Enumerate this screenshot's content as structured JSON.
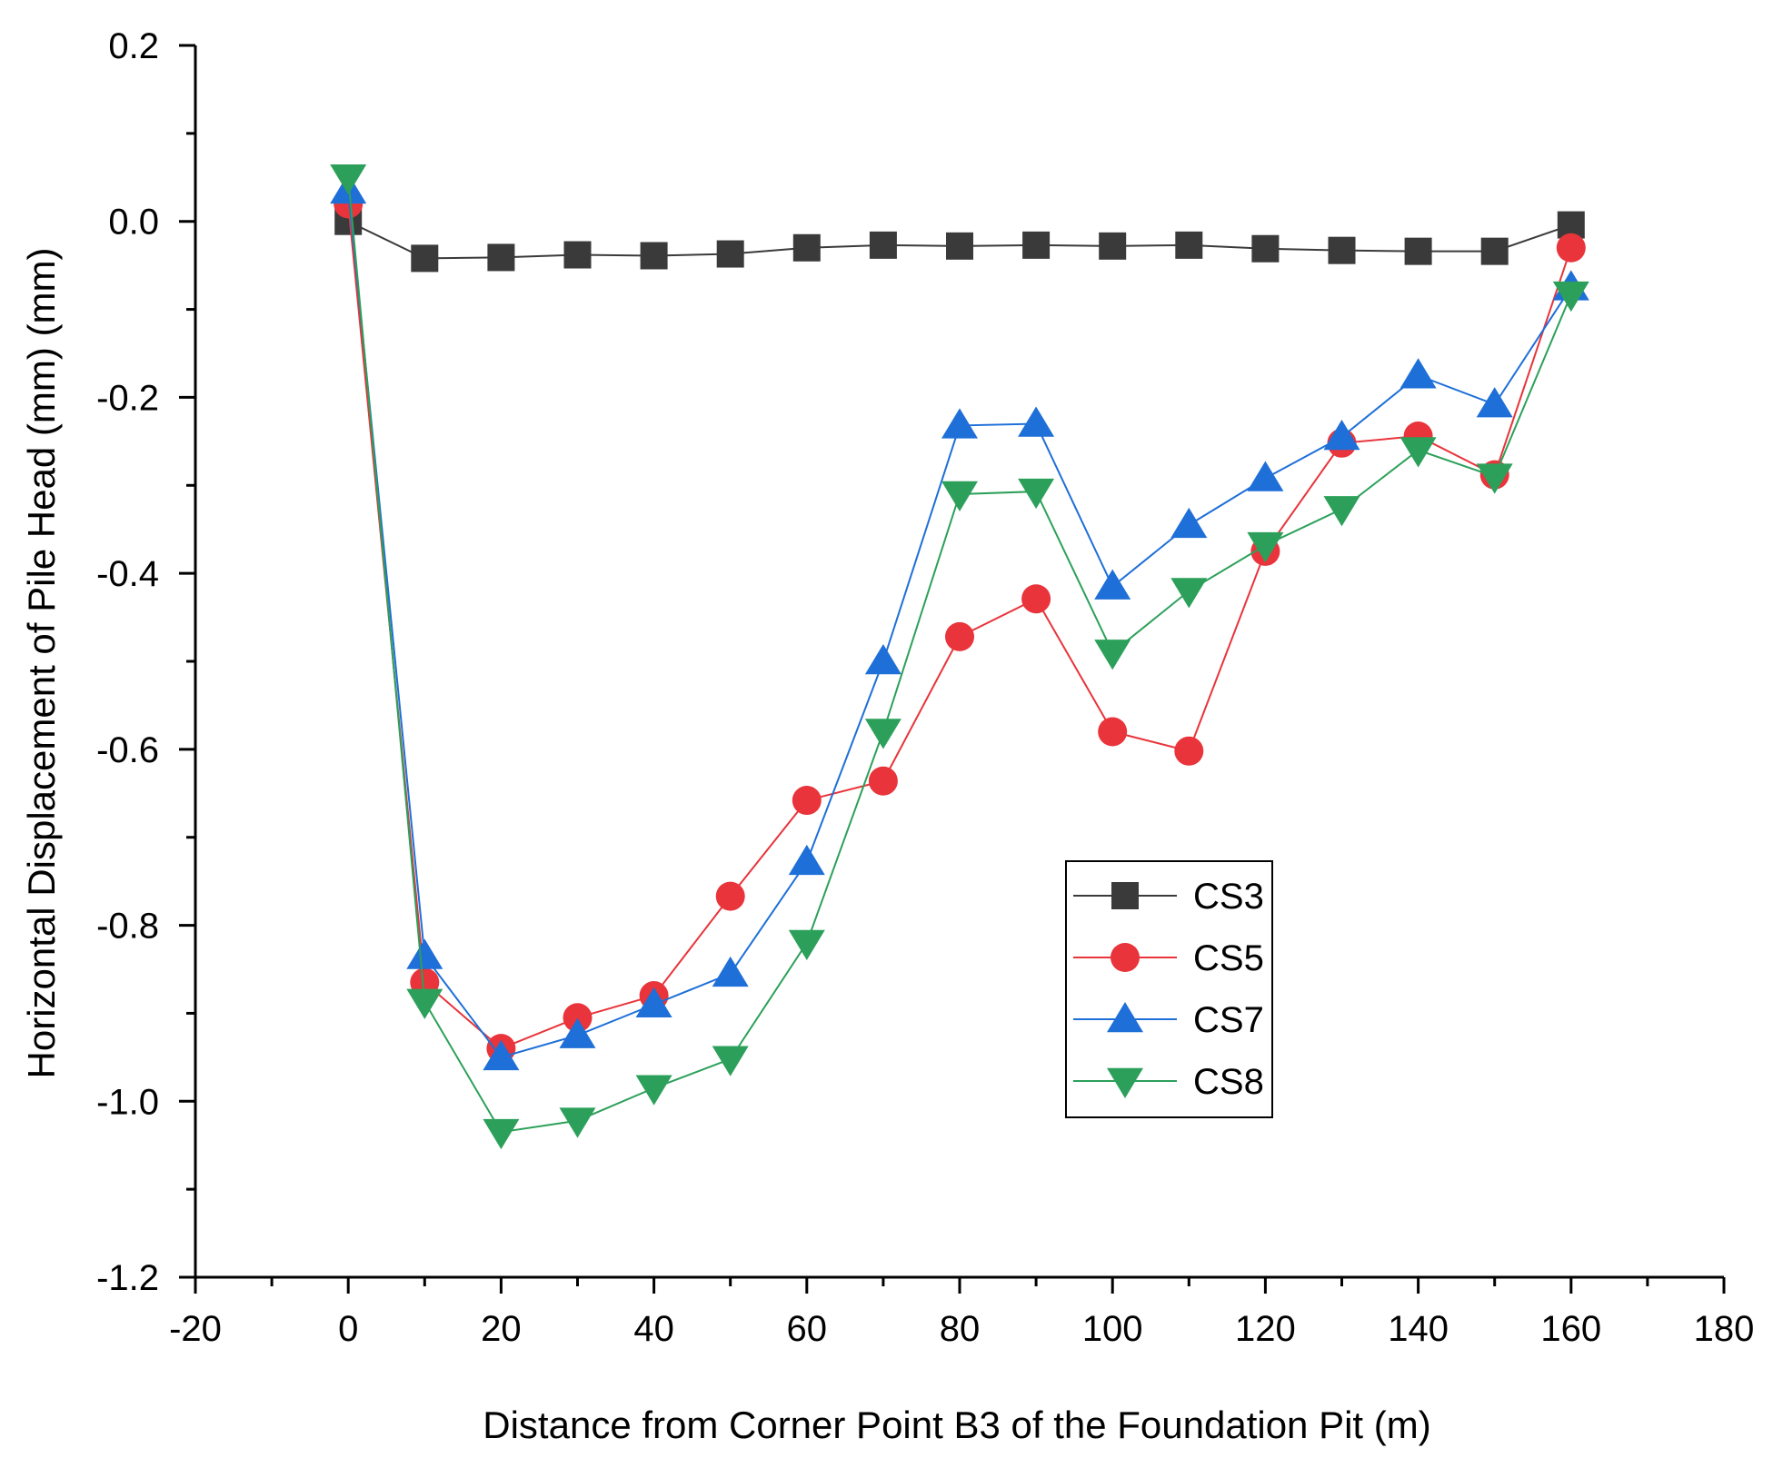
{
  "chart_data": {
    "type": "line",
    "title": "",
    "xlabel": "Distance from Corner Point B3 of the Foundation Pit (m)",
    "ylabel": "Horizontal Displacement of Pile Head (mm) (mm)",
    "xlim": [
      -20,
      180
    ],
    "ylim": [
      -1.2,
      0.2
    ],
    "grid": false,
    "legend_position": "center-right",
    "x_ticks": [
      -20,
      0,
      20,
      40,
      60,
      80,
      100,
      120,
      140,
      160,
      180
    ],
    "x_tick_labels": [
      "-20",
      "0",
      "20",
      "40",
      "60",
      "80",
      "100",
      "120",
      "140",
      "160",
      "180"
    ],
    "y_ticks": [
      0.2,
      0.0,
      -0.2,
      -0.4,
      -0.6,
      -0.8,
      -1.0,
      -1.2
    ],
    "y_tick_labels": [
      "0.2",
      "0.0",
      "-0.2",
      "-0.4",
      "-0.6",
      "-0.8",
      "-1.0",
      "-1.2"
    ],
    "x": [
      0,
      10,
      20,
      30,
      40,
      50,
      60,
      70,
      80,
      90,
      100,
      110,
      120,
      130,
      140,
      150,
      160
    ],
    "series": [
      {
        "name": "CS3",
        "color": "#3a3a3a",
        "marker": "square",
        "values": [
          0.0,
          -0.042,
          -0.041,
          -0.038,
          -0.039,
          -0.037,
          -0.03,
          -0.027,
          -0.028,
          -0.027,
          -0.028,
          -0.027,
          -0.031,
          -0.033,
          -0.034,
          -0.034,
          -0.004
        ]
      },
      {
        "name": "CS5",
        "color": "#e8343a",
        "marker": "circle",
        "values": [
          0.02,
          -0.865,
          -0.94,
          -0.905,
          -0.88,
          -0.767,
          -0.658,
          -0.636,
          -0.472,
          -0.429,
          -0.58,
          -0.602,
          -0.375,
          -0.252,
          -0.244,
          -0.288,
          -0.03
        ]
      },
      {
        "name": "CS7",
        "color": "#1e6fd8",
        "marker": "triangle-up",
        "values": [
          0.035,
          -0.835,
          -0.95,
          -0.925,
          -0.89,
          -0.855,
          -0.728,
          -0.5,
          -0.232,
          -0.23,
          -0.415,
          -0.345,
          -0.292,
          -0.245,
          -0.175,
          -0.208,
          -0.075
        ]
      },
      {
        "name": "CS8",
        "color": "#2ca05a",
        "marker": "triangle-down",
        "values": [
          0.05,
          -0.887,
          -1.035,
          -1.022,
          -0.985,
          -0.952,
          -0.82,
          -0.58,
          -0.31,
          -0.307,
          -0.49,
          -0.42,
          -0.368,
          -0.327,
          -0.26,
          -0.29,
          -0.083
        ]
      }
    ]
  }
}
